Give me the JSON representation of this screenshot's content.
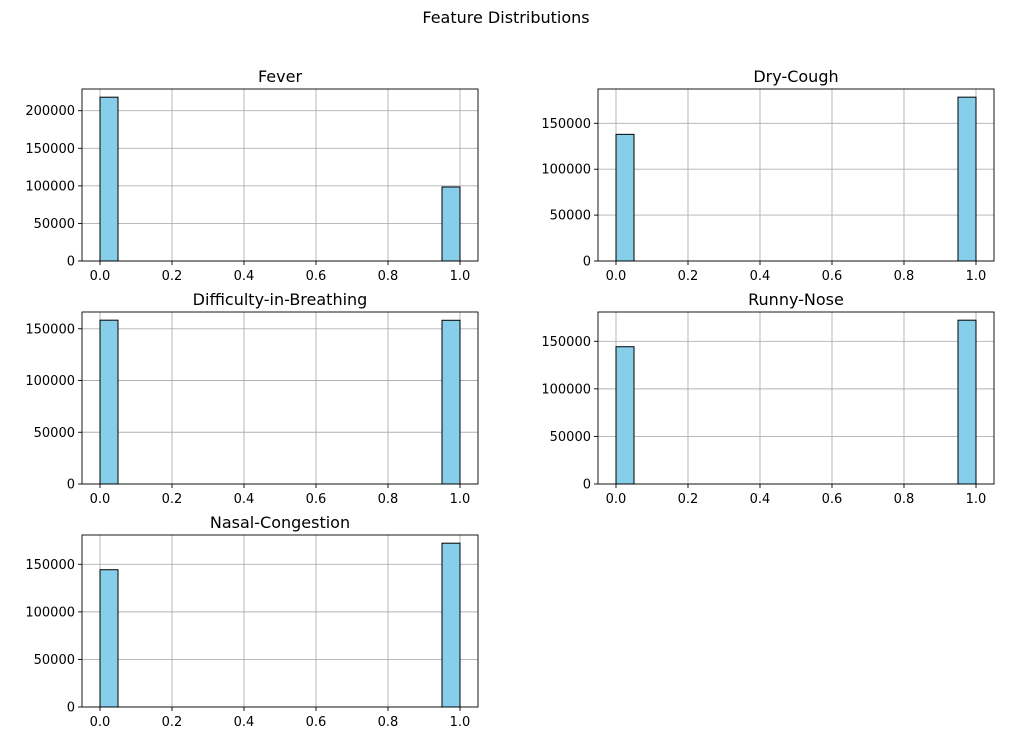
{
  "figure": {
    "title": "Feature Distributions"
  },
  "colors": {
    "bar_fill": "#87ceeb",
    "bar_edge": "#000000",
    "grid": "#b0b0b0",
    "axes": "#000000",
    "background": "#ffffff"
  },
  "chart_data": [
    {
      "type": "bar",
      "title": "Fever",
      "xlabel": "",
      "ylabel": "",
      "x": [
        0.0,
        1.0
      ],
      "values": [
        218000,
        98500
      ],
      "bin_width": 0.05,
      "xlim": [
        -0.05,
        1.05
      ],
      "ylim": [
        0,
        228900
      ],
      "xticks": [
        0.0,
        0.2,
        0.4,
        0.6,
        0.8,
        1.0
      ],
      "xtick_labels": [
        "0.0",
        "0.2",
        "0.4",
        "0.6",
        "0.8",
        "1.0"
      ],
      "yticks": [
        0,
        50000,
        100000,
        150000,
        200000
      ],
      "ytick_labels": [
        "0",
        "50000",
        "100000",
        "150000",
        "200000"
      ],
      "grid": true
    },
    {
      "type": "bar",
      "title": "Dry-Cough",
      "xlabel": "",
      "ylabel": "",
      "x": [
        0.0,
        1.0
      ],
      "values": [
        138000,
        178500
      ],
      "bin_width": 0.05,
      "xlim": [
        -0.05,
        1.05
      ],
      "ylim": [
        0,
        187400
      ],
      "xticks": [
        0.0,
        0.2,
        0.4,
        0.6,
        0.8,
        1.0
      ],
      "xtick_labels": [
        "0.0",
        "0.2",
        "0.4",
        "0.6",
        "0.8",
        "1.0"
      ],
      "yticks": [
        0,
        50000,
        100000,
        150000
      ],
      "ytick_labels": [
        "0",
        "50000",
        "100000",
        "150000"
      ],
      "grid": true
    },
    {
      "type": "bar",
      "title": "Difficulty-in-Breathing",
      "xlabel": "",
      "ylabel": "",
      "x": [
        0.0,
        1.0
      ],
      "values": [
        158300,
        158200
      ],
      "bin_width": 0.05,
      "xlim": [
        -0.05,
        1.05
      ],
      "ylim": [
        0,
        166200
      ],
      "xticks": [
        0.0,
        0.2,
        0.4,
        0.6,
        0.8,
        1.0
      ],
      "xtick_labels": [
        "0.0",
        "0.2",
        "0.4",
        "0.6",
        "0.8",
        "1.0"
      ],
      "yticks": [
        0,
        50000,
        100000,
        150000
      ],
      "ytick_labels": [
        "0",
        "50000",
        "100000",
        "150000"
      ],
      "grid": true
    },
    {
      "type": "bar",
      "title": "Runny-Nose",
      "xlabel": "",
      "ylabel": "",
      "x": [
        0.0,
        1.0
      ],
      "values": [
        144300,
        172200
      ],
      "bin_width": 0.05,
      "xlim": [
        -0.05,
        1.05
      ],
      "ylim": [
        0,
        180800
      ],
      "xticks": [
        0.0,
        0.2,
        0.4,
        0.6,
        0.8,
        1.0
      ],
      "xtick_labels": [
        "0.0",
        "0.2",
        "0.4",
        "0.6",
        "0.8",
        "1.0"
      ],
      "yticks": [
        0,
        50000,
        100000,
        150000
      ],
      "ytick_labels": [
        "0",
        "50000",
        "100000",
        "150000"
      ],
      "grid": true
    },
    {
      "type": "bar",
      "title": "Nasal-Congestion",
      "xlabel": "",
      "ylabel": "",
      "x": [
        0.0,
        1.0
      ],
      "values": [
        144300,
        172200
      ],
      "bin_width": 0.05,
      "xlim": [
        -0.05,
        1.05
      ],
      "ylim": [
        0,
        180800
      ],
      "xticks": [
        0.0,
        0.2,
        0.4,
        0.6,
        0.8,
        1.0
      ],
      "xtick_labels": [
        "0.0",
        "0.2",
        "0.4",
        "0.6",
        "0.8",
        "1.0"
      ],
      "yticks": [
        0,
        50000,
        100000,
        150000
      ],
      "ytick_labels": [
        "0",
        "50000",
        "100000",
        "150000"
      ],
      "grid": true
    }
  ]
}
